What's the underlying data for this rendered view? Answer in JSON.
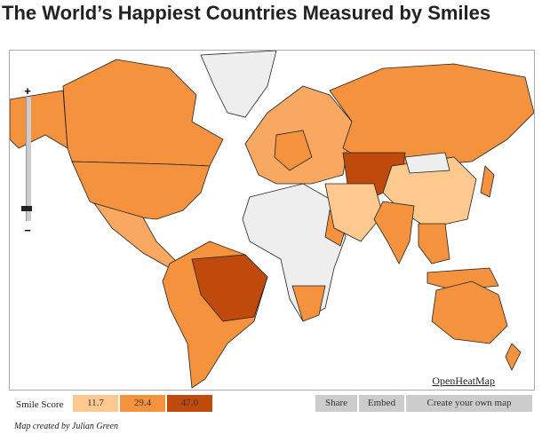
{
  "header": {
    "title": "The World’s Happiest Countries Measured by Smiles"
  },
  "map": {
    "zoom_in": "+",
    "zoom_out": "−",
    "credit_link": "OpenHeatMap"
  },
  "legend": {
    "label": "Smile Score",
    "steps": [
      {
        "label": "11.7",
        "color": "#fdc98f"
      },
      {
        "label": "29.4",
        "color": "#f5923e"
      },
      {
        "label": "47.0",
        "color": "#c04a0b"
      }
    ]
  },
  "buttons": [
    "Share",
    "Embed",
    "Create your own map"
  ],
  "footer": {
    "credit": "Map created by Julian Green"
  }
}
